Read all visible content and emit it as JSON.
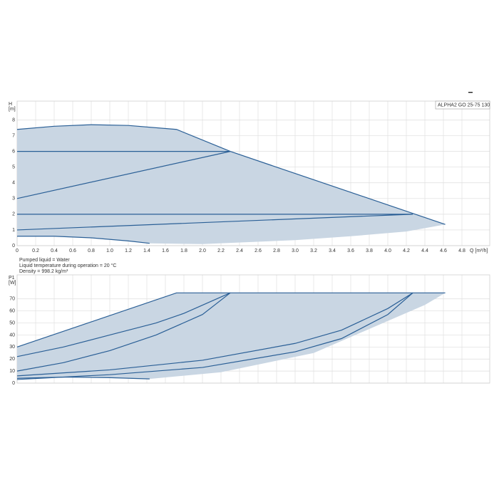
{
  "chart_data": [
    {
      "type": "line",
      "ylabel": "H",
      "yunit": "[m]",
      "xlabel": "Q [m³/h]",
      "legend_box": "ALPHA2 GO 25-75 130",
      "notes": [
        "Pumped liquid = Water",
        "Liquid temperature during operation = 20 °C",
        "Density = 998.2 kg/m³"
      ],
      "xlim": [
        0,
        5.1
      ],
      "ylim": [
        0,
        9.2
      ],
      "xticks": [
        0,
        0.2,
        0.4,
        0.6,
        0.8,
        {
          "value": 1,
          "label": "1.0"
        },
        1.2,
        1.4,
        1.6,
        1.8,
        {
          "value": 2,
          "label": "2.0"
        },
        2.2,
        2.4,
        2.6,
        2.8,
        {
          "value": 3,
          "label": "3.0"
        },
        3.2,
        3.4,
        3.6,
        3.8,
        {
          "value": 4,
          "label": "4.0"
        },
        4.2,
        4.4,
        4.6,
        4.8
      ],
      "yticks": [
        0,
        1,
        2,
        3,
        4,
        5,
        6,
        7,
        8
      ],
      "grid": true,
      "show_xtick_labels": true,
      "series": [
        {
          "fill": true,
          "color": "#c9d6e3",
          "x": [
            0,
            0.4,
            0.8,
            1.2,
            1.72,
            2.3,
            4.62,
            4.2,
            3.6,
            3,
            2,
            1.43,
            1.2,
            0.8,
            0.4,
            0
          ],
          "values": [
            7.4,
            7.6,
            7.7,
            7.65,
            7.4,
            6,
            1.35,
            0.9,
            0.6,
            0.35,
            0.1,
            0.15,
            0.3,
            0.5,
            0.6,
            0.6
          ]
        },
        {
          "color": "#2a5f96",
          "x": [
            0,
            0.4,
            0.8,
            1.2,
            1.72,
            2.3,
            4.62
          ],
          "values": [
            7.4,
            7.6,
            7.7,
            7.65,
            7.4,
            6,
            1.35
          ]
        },
        {
          "color": "#2a5f96",
          "x": [
            0,
            2.3
          ],
          "values": [
            6,
            6
          ]
        },
        {
          "color": "#2a5f96",
          "x": [
            0,
            2.3
          ],
          "values": [
            3,
            6
          ]
        },
        {
          "color": "#2a5f96",
          "x": [
            0,
            4.27
          ],
          "values": [
            2,
            2
          ]
        },
        {
          "color": "#2a5f96",
          "x": [
            0,
            4.27
          ],
          "values": [
            1,
            2
          ]
        },
        {
          "color": "#2a5f96",
          "x": [
            0,
            0.4,
            0.8,
            1.2,
            1.43
          ],
          "values": [
            0.6,
            0.6,
            0.5,
            0.3,
            0.15
          ]
        }
      ]
    },
    {
      "type": "line",
      "ylabel": "P1",
      "yunit": "[W]",
      "xlim": [
        0,
        5.1
      ],
      "ylim": [
        0,
        90
      ],
      "xticks": [
        0,
        0.2,
        0.4,
        0.6,
        0.8,
        1,
        1.2,
        1.4,
        1.6,
        1.8,
        2,
        2.2,
        2.4,
        2.6,
        2.8,
        3,
        3.2,
        3.4,
        3.6,
        3.8,
        4,
        4.2,
        4.4,
        4.6,
        4.8
      ],
      "yticks": [
        0,
        10,
        20,
        30,
        40,
        50,
        60,
        70
      ],
      "grid": true,
      "show_xtick_labels": false,
      "series": [
        {
          "fill": true,
          "color": "#c9d6e3",
          "x": [
            0,
            1.72,
            4.62,
            4.4,
            3.8,
            3.2,
            2.2,
            1.43,
            1,
            0.5,
            0
          ],
          "values": [
            30,
            75,
            75,
            65,
            45,
            25,
            9,
            3.5,
            4.5,
            5,
            4
          ]
        },
        {
          "color": "#2a5f96",
          "x": [
            0,
            1.72,
            4.62
          ],
          "values": [
            30,
            75,
            75
          ]
        },
        {
          "color": "#2a5f96",
          "x": [
            0,
            0.5,
            1,
            1.5,
            1.8,
            2.3
          ],
          "values": [
            22,
            30,
            40,
            50,
            58,
            75
          ]
        },
        {
          "color": "#2a5f96",
          "x": [
            0,
            0.5,
            1,
            1.5,
            2,
            2.3
          ],
          "values": [
            10,
            17,
            27,
            40,
            57,
            75
          ]
        },
        {
          "color": "#2a5f96",
          "x": [
            0,
            1,
            2,
            3,
            3.5,
            4,
            4.27
          ],
          "values": [
            6,
            11,
            19,
            33,
            44,
            62,
            75
          ]
        },
        {
          "color": "#2a5f96",
          "x": [
            0,
            1,
            2,
            3,
            3.5,
            4,
            4.27
          ],
          "values": [
            3,
            7,
            13,
            26,
            37,
            57,
            75
          ]
        },
        {
          "color": "#2a5f96",
          "x": [
            0,
            0.5,
            1,
            1.43
          ],
          "values": [
            4,
            5,
            4.5,
            3.5
          ]
        }
      ]
    }
  ]
}
